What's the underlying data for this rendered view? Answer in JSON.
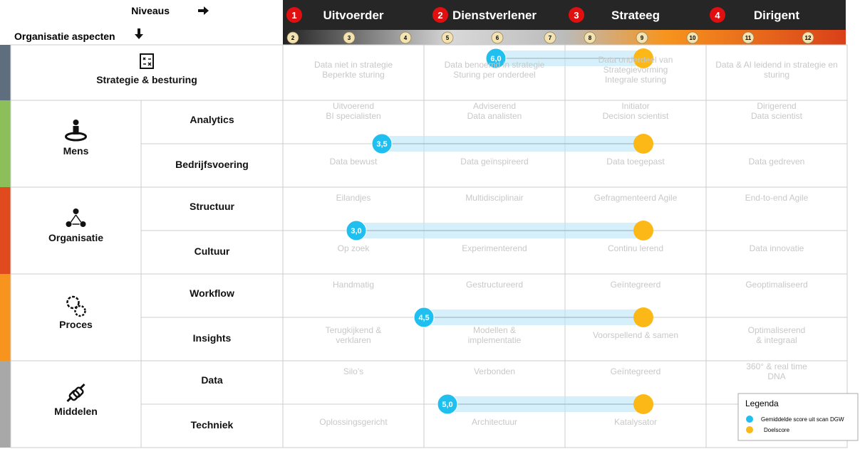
{
  "header": {
    "levels_label": "Niveaus",
    "aspects_label": "Organisatie aspecten",
    "levels": [
      {
        "number": "1",
        "name": "Uitvoerder"
      },
      {
        "number": "2",
        "name": "Dienstverlener"
      },
      {
        "number": "3",
        "name": "Strateeg"
      },
      {
        "number": "4",
        "name": "Dirigent"
      }
    ],
    "scale": [
      "2",
      "3",
      "4",
      "5",
      "6",
      "7",
      "8",
      "9",
      "10",
      "11",
      "12"
    ]
  },
  "aspects": [
    {
      "name": "Strategie & besturing",
      "score": "6,0",
      "rows": [
        {
          "cells": [
            "Data niet in strategie\nBeperkte sturing",
            "Data benoemd in strategie\nSturing per onderdeel",
            "Data onderdeel van\nStrategievorming\nIntegrale sturing",
            "Data & AI leidend in strategie en sturing"
          ]
        }
      ]
    },
    {
      "name": "Mens",
      "score": "3,5",
      "rows": [
        {
          "label": "Analytics",
          "cells": [
            "Uitvoerend\nBI specialisten",
            "Adviserend\nData analisten",
            "Initiator\nDecision scientist",
            "Dirigerend\nData scientist"
          ]
        },
        {
          "label": "Bedrijfsvoering",
          "cells": [
            "Data bewust",
            "Data geïnspireerd",
            "Data toegepast",
            "Data gedreven"
          ]
        }
      ]
    },
    {
      "name": "Organisatie",
      "score": "3,0",
      "rows": [
        {
          "label": "Structuur",
          "cells": [
            "Eilandjes",
            "Multidisciplinair",
            "Gefragmenteerd Agile",
            "End-to-end Agile"
          ]
        },
        {
          "label": "Cultuur",
          "cells": [
            "Op zoek",
            "Experimenterend",
            "Continu lerend",
            "Data innovatie"
          ]
        }
      ]
    },
    {
      "name": "Proces",
      "score": "4,5",
      "rows": [
        {
          "label": "Workflow",
          "cells": [
            "Handmatig",
            "Gestructureerd",
            "Geïntegreerd",
            "Geoptimaliseerd"
          ]
        },
        {
          "label": "Insights",
          "cells": [
            "Terugkijkend &\nverklaren",
            "Modellen &\nimplementatie",
            "Voorspellend & samen",
            "Optimaliserend\n& integraal"
          ]
        }
      ]
    },
    {
      "name": "Middelen",
      "score": "5,0",
      "rows": [
        {
          "label": "Data",
          "cells": [
            "Silo's",
            "Verbonden",
            "Geïntegreerd",
            "360° & real time\nDNA"
          ]
        },
        {
          "label": "Techniek",
          "cells": [
            "Oplossingsgericht",
            "Architectuur",
            "Katalysator"
          ]
        }
      ]
    }
  ],
  "legend": {
    "title": "Legenda",
    "items": [
      "Gemiddelde score uit scan DGW",
      "Doelscore"
    ]
  }
}
